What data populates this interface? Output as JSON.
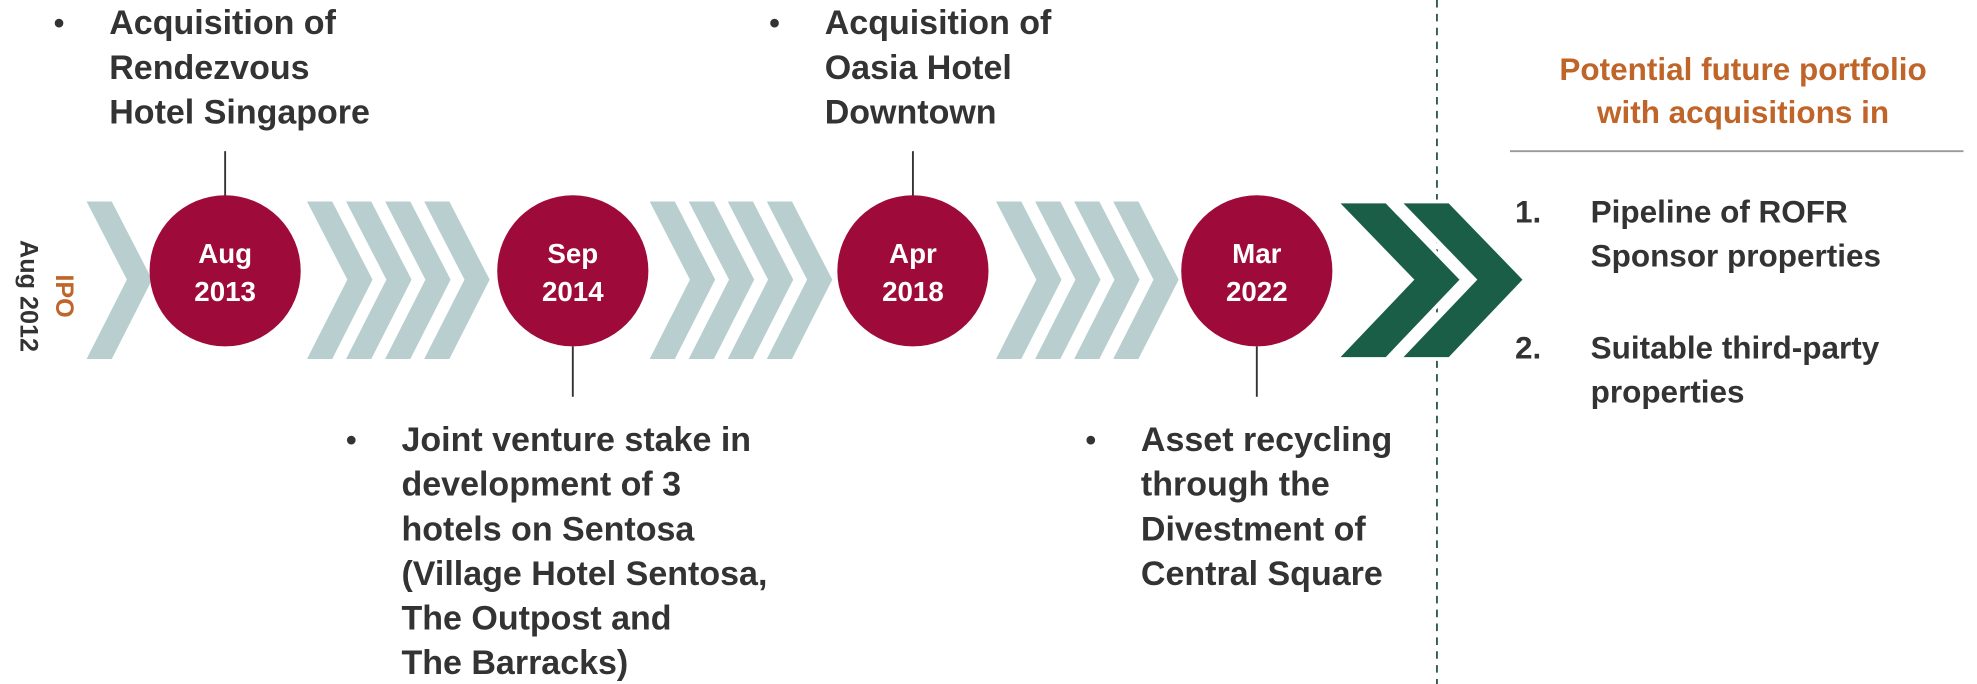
{
  "ipo": {
    "label": "IPO",
    "date": "Aug 2012"
  },
  "milestones": [
    {
      "bullet": "•",
      "date_lines": [
        "Aug",
        "2013"
      ],
      "text_lines": [
        "Acquisition of",
        "Rendezvous",
        "Hotel Singapore"
      ]
    },
    {
      "bullet": "•",
      "date_lines": [
        "Sep",
        "2014"
      ],
      "text_lines": [
        "Joint venture stake in",
        "development of 3",
        "hotels on Sentosa",
        "(Village Hotel Sentosa,",
        "The Outpost and",
        "The Barracks)"
      ]
    },
    {
      "bullet": "•",
      "date_lines": [
        "Apr",
        "2018"
      ],
      "text_lines": [
        "Acquisition of",
        "Oasia Hotel",
        "Downtown"
      ]
    },
    {
      "bullet": "•",
      "date_lines": [
        "Mar",
        "2022"
      ],
      "text_lines": [
        "Asset recycling",
        "through the",
        "Divestment of",
        "Central Square"
      ]
    }
  ],
  "future": {
    "title_lines": [
      "Potential future portfolio",
      "with acquisitions in"
    ],
    "items": [
      {
        "number": "1.",
        "lines": [
          "Pipeline of ROFR",
          "Sponsor properties"
        ]
      },
      {
        "number": "2.",
        "lines": [
          "Suitable third-party",
          "properties"
        ]
      }
    ]
  }
}
